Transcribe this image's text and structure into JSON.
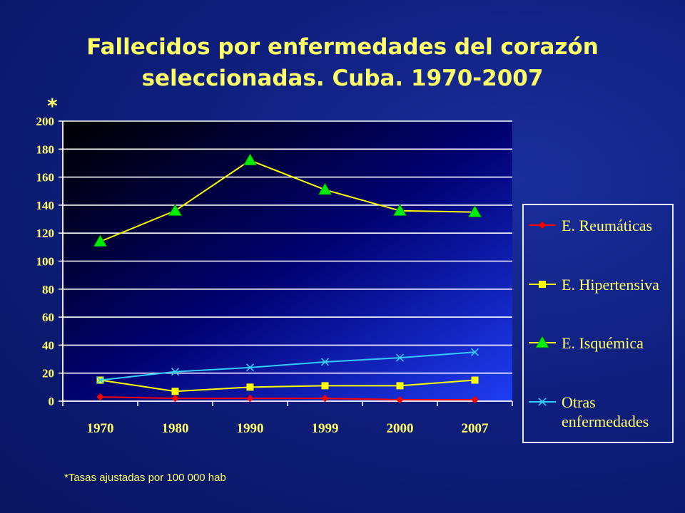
{
  "chart_data": {
    "type": "line",
    "title": "Fallecidos por enfermedades del corazón seleccionadas. Cuba. 1970-2007",
    "title_lines": [
      "Fallecidos por enfermedades del corazón",
      "seleccionadas. Cuba. 1970-2007"
    ],
    "ylabel": "*",
    "xlabel": "",
    "categories": [
      "1970",
      "1980",
      "1990",
      "1999",
      "2000",
      "2007"
    ],
    "ylim": [
      0,
      200
    ],
    "yticks": [
      0,
      20,
      40,
      60,
      80,
      100,
      120,
      140,
      160,
      180,
      200
    ],
    "grid": true,
    "legend_position": "right",
    "footnote": "*Tasas ajustadas por 100 000 hab",
    "series": [
      {
        "name": "E. Reumáticas",
        "values": [
          3,
          2,
          2,
          2,
          1,
          1
        ],
        "color": "#ff0000",
        "marker": "diamond"
      },
      {
        "name": "E. Hipertensiva",
        "values": [
          15,
          7,
          10,
          11,
          11,
          15
        ],
        "color": "#ffff00",
        "marker": "square"
      },
      {
        "name": "E. Isquémica",
        "values": [
          114,
          136,
          172,
          151,
          136,
          135
        ],
        "color": "#00ee00",
        "line_color": "#ffff00",
        "marker": "triangle"
      },
      {
        "name": "Otras enfermedades",
        "values": [
          15,
          21,
          24,
          28,
          31,
          35
        ],
        "color": "#33ccff",
        "marker": "x"
      }
    ]
  }
}
